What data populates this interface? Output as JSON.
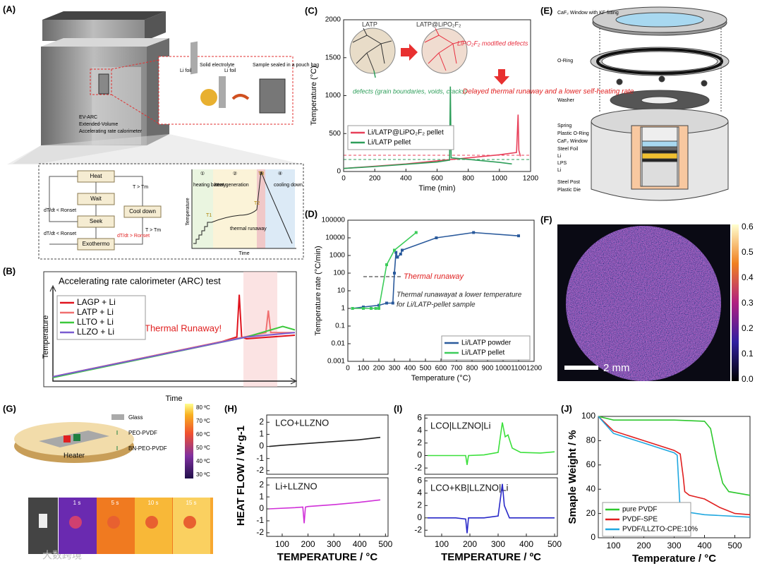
{
  "panel_labels": [
    "(A)",
    "(B)",
    "(C)",
    "(D)",
    "(E)",
    "(F)",
    "(G)",
    "(H)",
    "(I)",
    "(J)"
  ],
  "panel_a": {
    "device": [
      "EV-ARC",
      "Extended-Volume",
      "Accelerating rate calorimeter"
    ],
    "inset": [
      "Li foil",
      "Solid electrolyte",
      "Li foil",
      "Sample sealed in a pouch bag"
    ],
    "flow": [
      "Heat",
      "Wait",
      "Seek",
      "Exothermo",
      "Cool down"
    ],
    "conditions": [
      "T > Tm",
      "T > Tm",
      "dT/dt < Ronset",
      "dT/dt < Ronset",
      "dT/dt > Ronset"
    ],
    "stages": [
      "①",
      "②",
      "③",
      "④"
    ],
    "stage_names": [
      "heating battery",
      "heat generation",
      "cooling down",
      "thermal runaway"
    ],
    "axes": [
      "Temperature",
      "Time"
    ],
    "points": [
      "T1",
      "T2",
      "T3"
    ]
  },
  "panel_e": [
    "CaF₂ Window with KF fitting",
    "O-Ring",
    "Washer",
    "Spring",
    "Plastic O-Ring",
    "CaF₂ Window",
    "Steel Foil",
    "Li",
    "LPS",
    "Li",
    "Steel Post",
    "Plastic Die"
  ],
  "panel_f": {
    "colorbar": [
      "0.6",
      "0.5",
      "0.4",
      "0.3",
      "0.2",
      "0.1",
      "0.0"
    ],
    "scale": "2 mm"
  },
  "panel_g": {
    "legend": [
      "Glass",
      "PEO-PVDF",
      "BN-PEO-PVDF"
    ],
    "heater": "Heater",
    "times": [
      "1 s",
      "5 s",
      "10 s",
      "15 s"
    ],
    "colorbar": [
      "80 ºC",
      "70 ºC",
      "60 ºC",
      "50 ºC",
      "40 ºC",
      "30 ºC"
    ]
  },
  "watermark": "大数跨境",
  "chart_data": [
    {
      "type": "line",
      "title": "Accelerating rate calorimeter (ARC) test",
      "xlabel": "Time",
      "ylabel": "Temperature",
      "xlim": [
        0,
        100
      ],
      "ylim": [
        0,
        100
      ],
      "legend": "upper left",
      "annotations": [
        "Thermal Runaway!"
      ],
      "series": [
        {
          "name": "LAGP + Li",
          "color": "#e0141e",
          "x": [
            0,
            70,
            76,
            77,
            78,
            80,
            100
          ],
          "values": [
            5,
            45,
            50,
            98,
            50,
            48,
            52
          ]
        },
        {
          "name": "LATP + Li",
          "color": "#f07070",
          "x": [
            0,
            70,
            88,
            89,
            90,
            100
          ],
          "values": [
            5,
            45,
            55,
            80,
            55,
            55
          ]
        },
        {
          "name": "LLTO  + Li",
          "color": "#3cc83c",
          "x": [
            0,
            80,
            95,
            100
          ],
          "values": [
            4,
            50,
            62,
            58
          ]
        },
        {
          "name": "LLZO  + Li",
          "color": "#7a5cd0",
          "x": [
            0,
            80,
            100
          ],
          "values": [
            5,
            50,
            55
          ]
        }
      ]
    },
    {
      "type": "line",
      "xlabel": "Time (min)",
      "ylabel": "Temperature (°C)",
      "xlim": [
        0,
        1200
      ],
      "ylim": [
        0,
        2000
      ],
      "xticks": [
        0,
        200,
        400,
        600,
        800,
        1000,
        1200
      ],
      "yticks": [
        0,
        500,
        1000,
        1500,
        2000
      ],
      "legend": "center left",
      "annotations": [
        "LATP",
        "LATP@LiPO₂F₂",
        "LiPO₂F₂ modified defects",
        "defects  (grain boundaries, voids, cracks)",
        "Delayed thermal runaway and a lower self-heating rate"
      ],
      "series": [
        {
          "name": "Li/LATP@LiPO₂F₂ pellet",
          "color": "#e8405a",
          "x": [
            0,
            200,
            400,
            600,
            800,
            1000,
            1110,
            1120,
            1125,
            1135
          ],
          "values": [
            40,
            70,
            100,
            140,
            180,
            220,
            250,
            750,
            280,
            200
          ]
        },
        {
          "name": "Li/LATP pellet",
          "color": "#2e9e5a",
          "x": [
            0,
            200,
            400,
            600,
            680,
            685,
            690,
            800,
            1000,
            1080
          ],
          "values": [
            40,
            65,
            95,
            125,
            150,
            1120,
            180,
            160,
            120,
            100
          ]
        }
      ]
    },
    {
      "type": "line",
      "markers": true,
      "log_y": true,
      "xlabel": "Temperature (°C)",
      "ylabel": "Temperature rate (°C/min)",
      "xlim": [
        0,
        1200
      ],
      "ylim": [
        0.001,
        100000
      ],
      "xticks": [
        0,
        100,
        200,
        300,
        400,
        500,
        600,
        700,
        800,
        900,
        1000,
        1100,
        1200
      ],
      "yticks": [
        0.001,
        0.01,
        0.1,
        1,
        10,
        100,
        1000,
        10000,
        100000
      ],
      "legend": "lower right",
      "annotations": [
        "Thermal runaway",
        "Thermal runawayat a lower temperature",
        "for Li/LATP-pellet sample"
      ],
      "series": [
        {
          "name": "Li/LATP powder",
          "color": "#2a5a9c",
          "x": [
            30,
            100,
            200,
            250,
            290,
            300,
            310,
            320,
            340,
            350,
            570,
            810,
            1100
          ],
          "values": [
            1,
            1.2,
            1.5,
            2,
            2,
            100,
            1500,
            800,
            1200,
            2000,
            10000,
            20000,
            13000
          ]
        },
        {
          "name": "Li/LATP pellet",
          "color": "#3ccc5a",
          "x": [
            30,
            100,
            150,
            180,
            200,
            250,
            300,
            440
          ],
          "values": [
            1,
            1,
            1,
            1,
            1,
            300,
            2000,
            20000
          ]
        }
      ]
    },
    {
      "type": "line",
      "ylabel": "HEAT FLOW / W·g-1",
      "xlim": [
        40,
        510
      ],
      "ylim": [
        -2.3,
        2.6
      ],
      "yticks": [
        -2,
        -1,
        0,
        1,
        2
      ],
      "annotations": [
        "LCO+LLZNO"
      ],
      "series": [
        {
          "name": "LCO+LLZNO",
          "color": "#222222",
          "x": [
            50,
            100,
            200,
            300,
            400,
            480
          ],
          "values": [
            0,
            0.1,
            0.25,
            0.4,
            0.55,
            0.75
          ]
        }
      ]
    },
    {
      "type": "line",
      "xlabel": "TEMPERATURE / °C",
      "xlim": [
        40,
        510
      ],
      "ylim": [
        -2.3,
        2.6
      ],
      "xticks": [
        100,
        200,
        300,
        400,
        500
      ],
      "yticks": [
        -2,
        -1,
        0,
        1,
        2
      ],
      "annotations": [
        "Li+LLZNO"
      ],
      "series": [
        {
          "name": "Li+LLZNO",
          "color": "#d030d8",
          "x": [
            50,
            150,
            180,
            185,
            190,
            200,
            300,
            400,
            480
          ],
          "values": [
            0,
            0.1,
            0.15,
            -1.2,
            0.15,
            0.2,
            0.35,
            0.55,
            0.75
          ]
        }
      ]
    },
    {
      "type": "line",
      "xlim": [
        40,
        510
      ],
      "ylim": [
        -3,
        6.5
      ],
      "yticks": [
        -2,
        0,
        2,
        4,
        6
      ],
      "annotations": [
        "LCO|LLZNO|Li"
      ],
      "series": [
        {
          "name": "LCO|LLZNO|Li",
          "color": "#3ce03c",
          "x": [
            50,
            150,
            185,
            190,
            195,
            250,
            300,
            315,
            325,
            335,
            350,
            380,
            450,
            500
          ],
          "values": [
            0,
            0,
            0,
            -1.5,
            0,
            0.1,
            0.5,
            5.3,
            3,
            3.3,
            1.2,
            0.5,
            0.4,
            0.6
          ]
        }
      ]
    },
    {
      "type": "line",
      "xlabel": "TEMPERATURE / ºC",
      "xlim": [
        40,
        510
      ],
      "ylim": [
        -3,
        6.5
      ],
      "xticks": [
        100,
        200,
        300,
        400,
        500
      ],
      "yticks": [
        -2,
        0,
        2,
        4,
        6
      ],
      "annotations": [
        "LCO+KB|LLZNO|Li"
      ],
      "series": [
        {
          "name": "LCO+KB|LLZNO|Li",
          "color": "#2828c8",
          "x": [
            50,
            150,
            185,
            190,
            195,
            250,
            300,
            315,
            322,
            340,
            400,
            500
          ],
          "values": [
            0,
            0,
            -0.2,
            -2.5,
            0,
            0,
            0.3,
            5.5,
            2,
            0,
            0,
            0
          ]
        }
      ]
    },
    {
      "type": "line",
      "xlabel": "Temperature / °C",
      "ylabel": "Smaple Weight / %",
      "xlim": [
        50,
        550
      ],
      "ylim": [
        0,
        100
      ],
      "xticks": [
        100,
        200,
        300,
        400,
        500
      ],
      "yticks": [
        0,
        20,
        40,
        60,
        80,
        100
      ],
      "legend": "lower left",
      "series": [
        {
          "name": "pure PVDF",
          "color": "#2ec82e",
          "x": [
            50,
            100,
            200,
            300,
            400,
            420,
            440,
            460,
            480,
            550
          ],
          "values": [
            100,
            97,
            97,
            97,
            96,
            90,
            65,
            45,
            38,
            35
          ]
        },
        {
          "name": "PVDF-SPE",
          "color": "#e02020",
          "x": [
            50,
            100,
            200,
            300,
            320,
            330,
            335,
            350,
            400,
            450,
            500,
            550
          ],
          "values": [
            100,
            88,
            80,
            72,
            69,
            50,
            38,
            35,
            32,
            25,
            20,
            19
          ]
        },
        {
          "name": "PVDF/LLZTO-CPE:10%",
          "color": "#20a8e0",
          "x": [
            50,
            100,
            200,
            300,
            310,
            320,
            400,
            550
          ],
          "values": [
            100,
            86,
            78,
            70,
            68,
            22,
            19,
            17
          ]
        }
      ]
    }
  ]
}
